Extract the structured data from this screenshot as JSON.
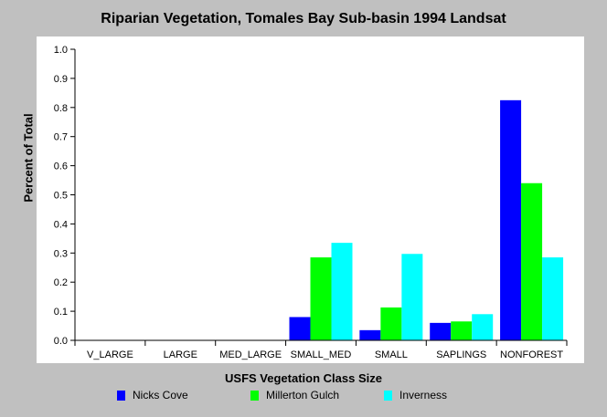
{
  "chart_data": {
    "type": "bar",
    "title": "Riparian Vegetation, Tomales Bay Sub-basin 1994 Landsat",
    "xlabel": "USFS Vegetation Class Size",
    "ylabel": "Percent of Total",
    "categories": [
      "V_LARGE",
      "LARGE",
      "MED_LARGE",
      "SMALL_MED",
      "SMALL",
      "SAPLINGS",
      "NONFOREST"
    ],
    "ylim": [
      0,
      1.0
    ],
    "yticks": [
      "0.0",
      "0.1",
      "0.2",
      "0.3",
      "0.4",
      "0.5",
      "0.6",
      "0.7",
      "0.8",
      "0.9",
      "1.0"
    ],
    "grid": false,
    "legend_position": "bottom",
    "series": [
      {
        "name": "Nicks Cove",
        "color": "#0000ff",
        "values": [
          0,
          0,
          0,
          0.08,
          0.035,
          0.06,
          0.825
        ]
      },
      {
        "name": "Millerton Gulch",
        "color": "#00ff00",
        "values": [
          0,
          0,
          0,
          0.285,
          0.113,
          0.065,
          0.54
        ]
      },
      {
        "name": "Inverness",
        "color": "#00ffff",
        "values": [
          0,
          0,
          0,
          0.335,
          0.297,
          0.09,
          0.285
        ]
      }
    ]
  },
  "style": {
    "plot_background": "#ffffff",
    "page_background": "#c0c0c0",
    "axis_color": "#000000"
  }
}
